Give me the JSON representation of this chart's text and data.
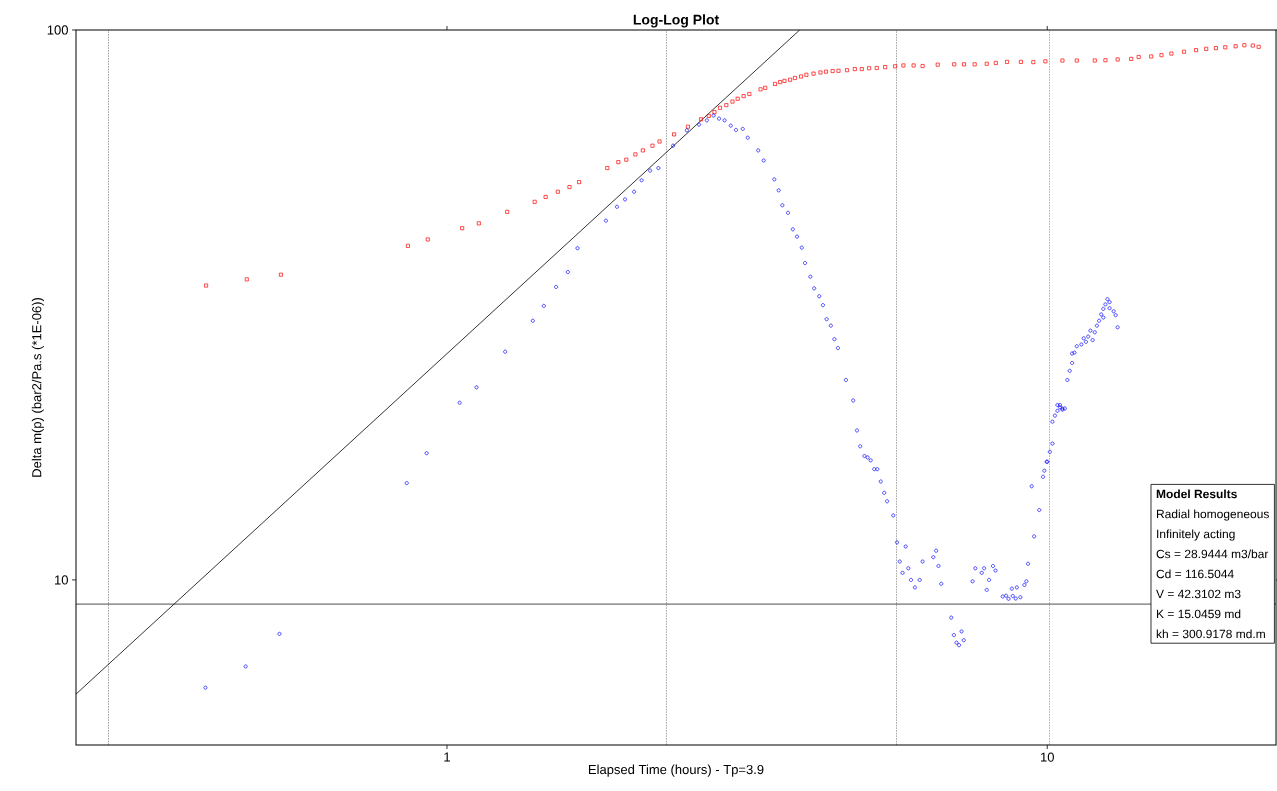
{
  "chart_data": {
    "type": "scatter",
    "title": "Log-Log Plot",
    "xlabel": "Elapsed Time (hours) - Tp=3.9",
    "ylabel": "Delta m(p) (bar2/Pa.s (*1E-06))",
    "log": "xy",
    "xlim": [
      0.241,
      24.05
    ],
    "ylim": [
      5.01,
      100
    ],
    "xticks": [
      1,
      10
    ],
    "yticks": [
      10,
      100
    ],
    "series": [
      {
        "color": "#ff0000",
        "marker": "square",
        "x": [
          0.397,
          0.464,
          0.529,
          0.861,
          0.929,
          1.06,
          1.13,
          1.26,
          1.4,
          1.46,
          1.53,
          1.6,
          1.66,
          1.85,
          1.93,
          1.99,
          2.06,
          2.12,
          2.2,
          2.26,
          2.39,
          2.52,
          2.65,
          2.73,
          2.79,
          2.85,
          2.92,
          2.99,
          3.05,
          3.12,
          3.19,
          3.33,
          3.39,
          3.52,
          3.59,
          3.65,
          3.73,
          3.8,
          3.89,
          3.97,
          4.08,
          4.19,
          4.28,
          4.39,
          4.49,
          4.64,
          4.78,
          4.91,
          5.05,
          5.2,
          5.37,
          5.58,
          5.76,
          5.99,
          6.2,
          6.57,
          7,
          7.27,
          7.57,
          7.93,
          8.21,
          8.57,
          9.04,
          9.48,
          9.93,
          10.6,
          11.2,
          12,
          12.5,
          13.1,
          13.8,
          14.2,
          14.9,
          15.5,
          16.1,
          16.9,
          17.7,
          18.4,
          19.1,
          19.8,
          20.6,
          21.3,
          22,
          22.5
        ],
        "values": [
          34.3,
          35.2,
          35.9,
          40.5,
          41.6,
          43.6,
          44.5,
          46.7,
          48.7,
          49.7,
          50.8,
          51.8,
          52.9,
          56.1,
          57.5,
          58.1,
          59.4,
          60.4,
          61.6,
          62.7,
          64.6,
          66.7,
          68.8,
          69.8,
          70.9,
          72.2,
          73.0,
          74.1,
          75.0,
          75.8,
          76.5,
          78.0,
          78.5,
          79.8,
          80.4,
          80.8,
          81.2,
          81.8,
          82.3,
          82.9,
          83.3,
          83.7,
          84.0,
          84.2,
          84.3,
          84.5,
          84.9,
          84.9,
          85.2,
          85.3,
          85.6,
          85.9,
          86.2,
          86.2,
          86.0,
          86.5,
          86.6,
          86.6,
          86.6,
          86.8,
          87.1,
          87.5,
          87.5,
          87.4,
          87.7,
          88.0,
          88.0,
          88.0,
          88.1,
          88.4,
          88.6,
          89.3,
          89.5,
          90.0,
          90.6,
          91.3,
          91.9,
          92.4,
          92.7,
          93.0,
          93.4,
          93.8,
          93.7,
          93.2
        ]
      },
      {
        "color": "#0000ff",
        "marker": "circle",
        "x": [
          0.396,
          0.462,
          0.526,
          0.857,
          0.925,
          1.05,
          1.12,
          1.25,
          1.39,
          1.45,
          1.52,
          1.59,
          1.65,
          1.84,
          1.92,
          1.98,
          2.05,
          2.11,
          2.18,
          2.25,
          2.38,
          2.51,
          2.63,
          2.71,
          2.78,
          2.84,
          2.9,
          2.97,
          3.03,
          3.11,
          3.17,
          3.3,
          3.37,
          3.51,
          3.57,
          3.62,
          3.7,
          3.77,
          3.83,
          3.9,
          3.95,
          4.03,
          4.09,
          4.17,
          4.23,
          4.29,
          4.36,
          4.42,
          4.48,
          4.62,
          4.75,
          4.82,
          4.88,
          4.96,
          5.02,
          5.08,
          5.15,
          5.21,
          5.28,
          5.35,
          5.41,
          5.54,
          5.62,
          5.68,
          5.74,
          5.81,
          5.87,
          5.93,
          6.02,
          6.13,
          6.2,
          6.46,
          6.53,
          6.59,
          6.66,
          6.92,
          6.99,
          7.06,
          7.13,
          7.2,
          7.26,
          7.51,
          7.59,
          7.78,
          7.85,
          7.93,
          8,
          8.12,
          8.2,
          8.43,
          8.54,
          8.62,
          8.73,
          8.76,
          8.86,
          8.9,
          9.02,
          9.16,
          9.23,
          9.29,
          9.42,
          9.51,
          9.7,
          9.84,
          9.89,
          9.98,
          10,
          10.1,
          10.2,
          10.2,
          10.3,
          10.4,
          10.4,
          10.5,
          10.5,
          10.6,
          10.6,
          10.7,
          10.8,
          10.9,
          11,
          11,
          11.1,
          11.2,
          11.4,
          11.5,
          11.6,
          11.7,
          11.8,
          11.9,
          12,
          12.1,
          12.2,
          12.3,
          12.4,
          12.4,
          12.5,
          12.6,
          12.7,
          12.7,
          12.9,
          13,
          13.1
        ],
        "values": [
          6.37,
          6.96,
          7.98,
          15,
          17,
          21,
          22.4,
          26,
          29.6,
          31.5,
          34.1,
          36.3,
          40.1,
          45,
          47.7,
          49.2,
          50.8,
          53.3,
          55.5,
          56.1,
          61.6,
          65.7,
          67.3,
          68.5,
          69.9,
          69,
          68.5,
          67,
          65.8,
          66.1,
          63.7,
          60.4,
          57.9,
          53.5,
          51.1,
          48,
          46.5,
          43.4,
          42.1,
          40.2,
          37.7,
          35.6,
          33.9,
          32.8,
          31.6,
          29.8,
          29,
          27.4,
          26.4,
          23.1,
          21.2,
          18.7,
          17.5,
          16.8,
          16.7,
          16.5,
          15.9,
          15.9,
          15.1,
          14.4,
          13.9,
          13.1,
          11.7,
          10.8,
          10.3,
          11.5,
          10.5,
          10,
          9.69,
          10,
          10.8,
          11,
          11.3,
          10.6,
          9.84,
          8.54,
          7.94,
          7.69,
          7.61,
          8.06,
          7.77,
          9.94,
          10.5,
          10.3,
          10.5,
          9.59,
          10,
          10.6,
          10.4,
          9.33,
          9.36,
          9.24,
          9.64,
          9.35,
          9.25,
          9.69,
          9.3,
          9.79,
          9.94,
          10.7,
          14.8,
          12,
          13.4,
          15.4,
          15.8,
          16.4,
          16.4,
          17.1,
          17.7,
          19.4,
          19.9,
          20.3,
          20.8,
          20.8,
          20.6,
          20.4,
          20.5,
          20.5,
          23.1,
          24,
          24.8,
          25.8,
          25.9,
          26.6,
          26.8,
          27.5,
          27.1,
          27.7,
          28.4,
          27.3,
          28.2,
          29,
          29.6,
          30.4,
          30,
          31.1,
          31.7,
          32.4,
          32,
          31.2,
          30.8,
          30.3,
          28.8
        ]
      },
      {
        "type": "line",
        "color": "#000000",
        "line_style": "solid",
        "x": [
          0.241,
          3.87
        ],
        "values": [
          6.2,
          100
        ]
      }
    ],
    "ref_lines": [
      {
        "axis": "y",
        "value": 9.04,
        "color": "#000000",
        "line_style": "solid"
      },
      {
        "axis": "x",
        "value": 0.273,
        "color": "#000000",
        "line_style": "dotted"
      },
      {
        "axis": "x",
        "value": 2.32,
        "color": "#000000",
        "line_style": "dotted"
      },
      {
        "axis": "x",
        "value": 5.61,
        "color": "#000000",
        "line_style": "dotted"
      },
      {
        "axis": "x",
        "value": 10.08,
        "color": "#000000",
        "line_style": "dotted"
      }
    ],
    "annotations": [
      "Model Results",
      "Radial homogeneous",
      "Infinitely acting",
      "Cs = 28.9444 m3/bar",
      "Cd = 116.5044",
      "V = 42.3102 m3",
      "K = 15.0459 md",
      "kh = 300.9178 md.m"
    ]
  }
}
